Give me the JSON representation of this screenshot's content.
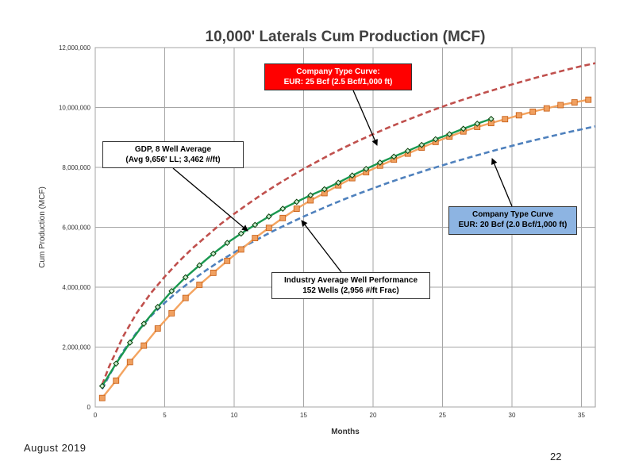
{
  "page": {
    "footer_date": "August 2019",
    "page_number": "22"
  },
  "chart_data": {
    "type": "line",
    "title": "10,000' Laterals Cum Production (MCF)",
    "xlabel": "Months",
    "ylabel": "Cum Production (MCF)",
    "xlim": [
      0,
      36
    ],
    "ylim": [
      0,
      12000000
    ],
    "xticks": [
      0,
      5,
      10,
      15,
      20,
      25,
      30,
      35
    ],
    "yticks": [
      0,
      2000000,
      4000000,
      6000000,
      8000000,
      10000000,
      12000000
    ],
    "ytick_labels": [
      "0",
      "2,000,000",
      "4,000,000",
      "6,000,000",
      "8,000,000",
      "10,000,000",
      "12,000,000"
    ],
    "grid": true,
    "series": [
      {
        "id": "company-25",
        "color": "#c0504d",
        "style": "dashed",
        "x": [
          0.5,
          1,
          2,
          3,
          4,
          5,
          6,
          7,
          8,
          9,
          10,
          11,
          12,
          13,
          14,
          15,
          16,
          17,
          18,
          19,
          20,
          21,
          22,
          23,
          24,
          25,
          26,
          27,
          28,
          29,
          30,
          31,
          32,
          33,
          34,
          35,
          36
        ],
        "values": [
          750000,
          1350000,
          2350000,
          3150000,
          3800000,
          4350000,
          4850000,
          5300000,
          5700000,
          6100000,
          6450000,
          6780000,
          7100000,
          7400000,
          7680000,
          7950000,
          8200000,
          8450000,
          8680000,
          8900000,
          9110000,
          9310000,
          9500000,
          9680000,
          9860000,
          10030000,
          10190000,
          10340000,
          10490000,
          10630000,
          10770000,
          10900000,
          11030000,
          11150000,
          11270000,
          11380000,
          11480000
        ]
      },
      {
        "id": "company-20",
        "color": "#4f81bd",
        "style": "dashed",
        "x": [
          0.5,
          1,
          2,
          3,
          4,
          5,
          6,
          7,
          8,
          9,
          10,
          11,
          12,
          13,
          14,
          15,
          16,
          17,
          18,
          19,
          20,
          21,
          22,
          23,
          24,
          25,
          26,
          27,
          28,
          29,
          30,
          31,
          32,
          33,
          34,
          35,
          36
        ],
        "values": [
          600000,
          1050000,
          1850000,
          2500000,
          3030000,
          3480000,
          3880000,
          4240000,
          4570000,
          4880000,
          5160000,
          5430000,
          5680000,
          5920000,
          6140000,
          6360000,
          6560000,
          6760000,
          6950000,
          7130000,
          7300000,
          7470000,
          7630000,
          7780000,
          7930000,
          8070000,
          8210000,
          8340000,
          8470000,
          8600000,
          8720000,
          8840000,
          8950000,
          9060000,
          9170000,
          9270000,
          9370000
        ]
      },
      {
        "id": "industry-average",
        "color": "#f4a460",
        "style": "solid",
        "marker": "square",
        "x": [
          0.5,
          1.5,
          2.5,
          3.5,
          4.5,
          5.5,
          6.5,
          7.5,
          8.5,
          9.5,
          10.5,
          11.5,
          12.5,
          13.5,
          14.5,
          15.5,
          16.5,
          17.5,
          18.5,
          19.5,
          20.5,
          21.5,
          22.5,
          23.5,
          24.5,
          25.5,
          26.5,
          27.5,
          28.5,
          29.5,
          30.5,
          31.5,
          32.5,
          33.5,
          34.5,
          35.5
        ],
        "values": [
          300000,
          880000,
          1500000,
          2050000,
          2620000,
          3130000,
          3640000,
          4080000,
          4480000,
          4880000,
          5260000,
          5640000,
          5980000,
          6310000,
          6620000,
          6900000,
          7140000,
          7400000,
          7640000,
          7840000,
          8060000,
          8260000,
          8460000,
          8660000,
          8850000,
          9030000,
          9200000,
          9350000,
          9480000,
          9610000,
          9740000,
          9860000,
          9970000,
          10080000,
          10170000,
          10260000
        ]
      },
      {
        "id": "gdp-average",
        "color": "#1a9850",
        "style": "solid",
        "marker": "diamond",
        "x": [
          0.5,
          1.5,
          2.5,
          3.5,
          4.5,
          5.5,
          6.5,
          7.5,
          8.5,
          9.5,
          10.5,
          11.5,
          12.5,
          13.5,
          14.5,
          15.5,
          16.5,
          17.5,
          18.5,
          19.5,
          20.5,
          21.5,
          22.5,
          23.5,
          24.5,
          25.5,
          26.5,
          27.5,
          28.5
        ],
        "values": [
          700000,
          1450000,
          2150000,
          2780000,
          3340000,
          3870000,
          4330000,
          4730000,
          5120000,
          5480000,
          5790000,
          6080000,
          6360000,
          6620000,
          6850000,
          7070000,
          7270000,
          7490000,
          7730000,
          7950000,
          8160000,
          8360000,
          8550000,
          8750000,
          8940000,
          9110000,
          9290000,
          9460000,
          9620000
        ]
      }
    ],
    "annotations": [
      {
        "id": "company-25",
        "lines": [
          "Company Type Curve:",
          "EUR: 25 Bcf (2.5 Bcf/1,000 ft)"
        ],
        "fill": "#ff0000",
        "text_color": "#ffffff"
      },
      {
        "id": "gdp-average",
        "lines": [
          "GDP, 8 Well Average",
          "(Avg 9,656' LL; 3,462 #/ft)"
        ],
        "fill": "#ffffff",
        "text_color": "#000000"
      },
      {
        "id": "company-20",
        "lines": [
          "Company Type Curve",
          "EUR: 20 Bcf (2.0 Bcf/1,000 ft)"
        ],
        "fill": "#8db4e2",
        "text_color": "#000000"
      },
      {
        "id": "industry-average",
        "lines": [
          "Industry Average Well Performance",
          "152 Wells (2,956 #/ft Frac)"
        ],
        "fill": "#ffffff",
        "text_color": "#000000"
      }
    ]
  }
}
